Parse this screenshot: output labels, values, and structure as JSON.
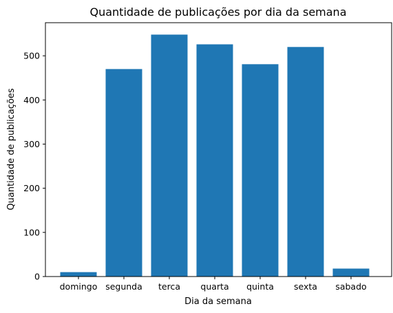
{
  "chart_data": {
    "type": "bar",
    "title": "Quantidade de publicações por dia da semana",
    "xlabel": "Dia da semana",
    "ylabel": "Quantidade de publicações",
    "categories": [
      "domingo",
      "segunda",
      "terca",
      "quarta",
      "quinta",
      "sexta",
      "sabado"
    ],
    "values": [
      10,
      470,
      548,
      526,
      481,
      520,
      18
    ],
    "ylim": [
      0,
      575
    ],
    "yticks": [
      0,
      100,
      200,
      300,
      400,
      500
    ],
    "grid": false,
    "bar_color": "#1f77b4"
  }
}
